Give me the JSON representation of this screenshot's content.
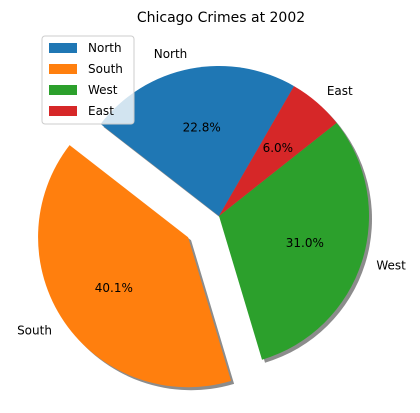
{
  "chart_data": {
    "type": "pie",
    "title": "Chicago Crimes at 2002",
    "slices": [
      {
        "label": "North",
        "value": 22.8,
        "pct_label": "22.8%",
        "color": "#1f77b4",
        "exploded": false
      },
      {
        "label": "South",
        "value": 40.1,
        "pct_label": "40.1%",
        "color": "#ff7f0e",
        "exploded": true
      },
      {
        "label": "West",
        "value": 31.0,
        "pct_label": "31.0%",
        "color": "#2ca02c",
        "exploded": false
      },
      {
        "label": "East",
        "value": 6.0,
        "pct_label": "6.0%",
        "color": "#d62728",
        "exploded": false
      }
    ],
    "start_angle_deg": 60,
    "shadow": true,
    "legend": {
      "placement": "top-left",
      "entries": [
        "North",
        "South",
        "West",
        "East"
      ]
    }
  }
}
